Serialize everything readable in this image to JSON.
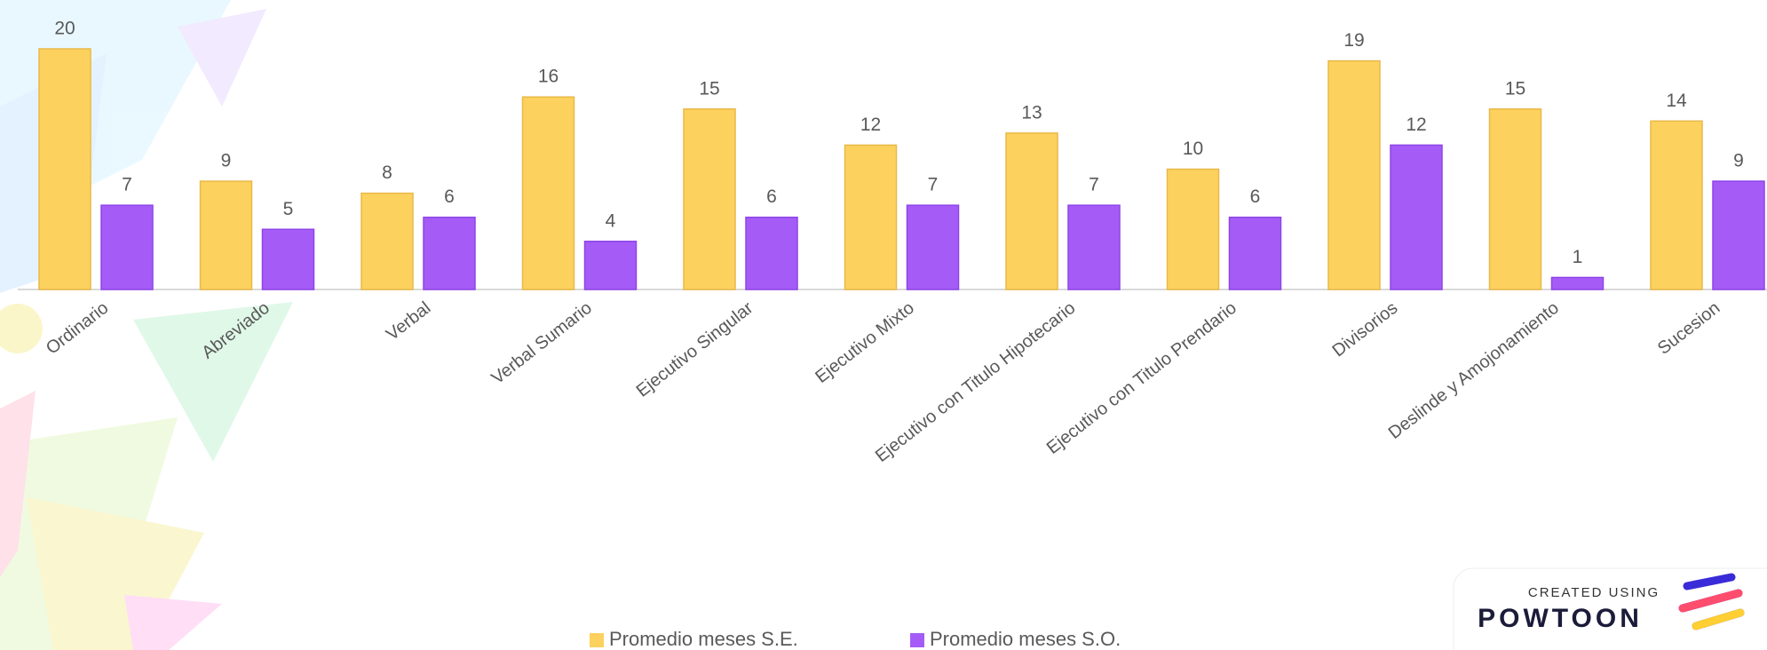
{
  "chart_data": {
    "type": "bar",
    "categories": [
      "Ordinario",
      "Abreviado",
      "Verbal",
      "Verbal Sumario",
      "Ejecutivo Singular",
      "Ejecutivo Mixto",
      "Ejecutivo con Titulo Hipotecario",
      "Ejecutivo con Titulo Prendario",
      "Divisorios",
      "Deslinde y Amojonamiento",
      "Sucesion"
    ],
    "series": [
      {
        "name": "Promedio meses S.E.",
        "color": "#FDD15E",
        "values": [
          20,
          9,
          8,
          16,
          15,
          12,
          13,
          10,
          19,
          15,
          14
        ]
      },
      {
        "name": "Promedio meses S.O.",
        "color": "#A55CF7",
        "values": [
          7,
          5,
          6,
          4,
          6,
          7,
          7,
          6,
          12,
          1,
          9
        ]
      }
    ],
    "ylim": [
      0,
      20
    ],
    "legend": "bottom"
  },
  "watermark": {
    "caption": "CREATED USING",
    "brand": "POWTOON"
  }
}
